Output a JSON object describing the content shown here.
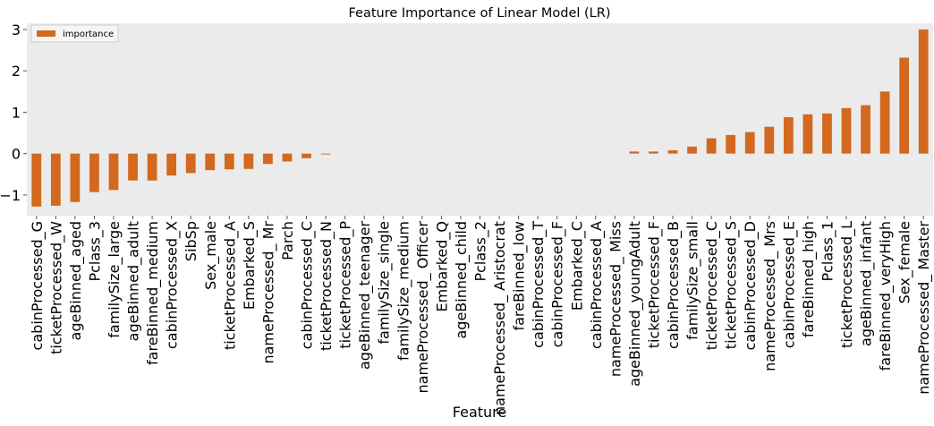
{
  "chart_data": {
    "type": "bar",
    "title": "Feature Importance of Linear Model (LR)",
    "xlabel": "Feature",
    "ylabel": "",
    "ylim": [
      -1.5,
      3.15
    ],
    "yticks": [
      -1,
      0,
      1,
      2,
      3
    ],
    "ytick_labels": [
      "−1",
      "0",
      "1",
      "2",
      "3"
    ],
    "grid": false,
    "legend_position": "top-left",
    "bar_color": "#D2691E",
    "background_color": "#EBEBEB",
    "categories": [
      "cabinProcessed_G",
      "ticketProcessed_W",
      "ageBinned_aged",
      "Pclass_3",
      "familySize_large",
      "ageBinned_adult",
      "fareBinned_medium",
      "cabinProcessed_X",
      "SibSp",
      "Sex_male",
      "ticketProcessed_A",
      "Embarked_S",
      "nameProcessed_ Mr",
      "Parch",
      "cabinProcessed_C",
      "ticketProcessed_N",
      "ticketProcessed_P",
      "ageBinned_teenager",
      "familySize_single",
      "familySize_medium",
      "nameProcessed_ Officer",
      "Embarked_Q",
      "ageBinned_child",
      "Pclass_2",
      "nameProcessed_ Aristocrat",
      "fareBinned_low",
      "cabinProcessed_T",
      "cabinProcessed_F",
      "Embarked_C",
      "cabinProcessed_A",
      "nameProcessed_ Miss",
      "ageBinned_youngAdult",
      "ticketProcessed_F",
      "cabinProcessed_B",
      "familySize_small",
      "ticketProcessed_C",
      "ticketProcessed_S",
      "cabinProcessed_D",
      "nameProcessed_ Mrs",
      "cabinProcessed_E",
      "fareBinned_high",
      "Pclass_1",
      "ticketProcessed_L",
      "ageBinned_infant",
      "fareBinned_veryHigh",
      "Sex_female",
      "nameProcessed_ Master"
    ],
    "series": [
      {
        "name": "importance",
        "values": [
          -1.28,
          -1.26,
          -1.17,
          -0.93,
          -0.88,
          -0.65,
          -0.65,
          -0.53,
          -0.47,
          -0.4,
          -0.38,
          -0.37,
          -0.25,
          -0.19,
          -0.11,
          -0.02,
          0,
          0,
          0,
          0,
          0,
          0,
          0,
          0,
          0,
          0,
          0,
          0,
          0,
          0,
          0,
          0.05,
          0.05,
          0.08,
          0.17,
          0.37,
          0.45,
          0.52,
          0.65,
          0.88,
          0.95,
          0.97,
          1.1,
          1.17,
          1.5,
          2.32,
          3.0
        ]
      }
    ]
  }
}
